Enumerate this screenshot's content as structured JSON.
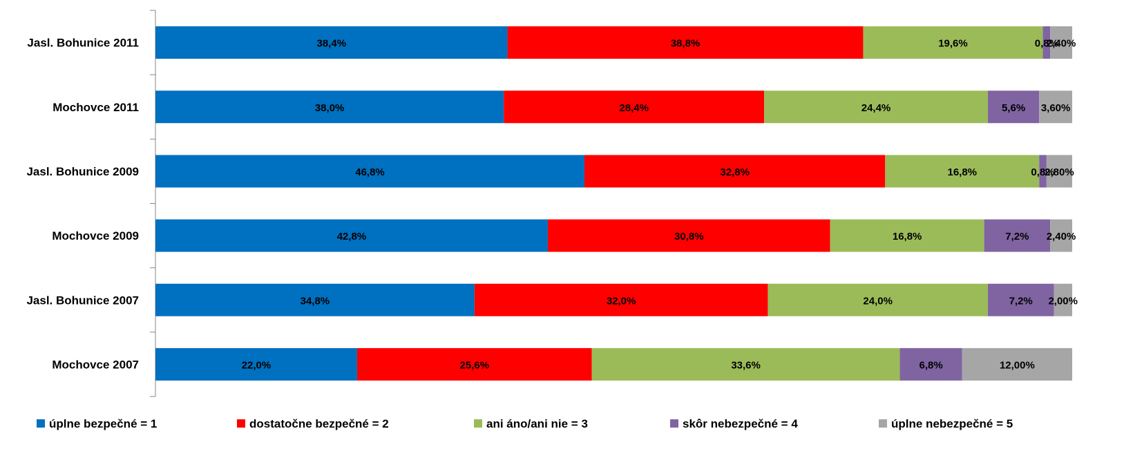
{
  "chart_data": {
    "type": "bar",
    "orientation": "horizontal",
    "stacked": true,
    "percent_stacked": true,
    "categories": [
      "Jasl. Bohunice 2011",
      "Mochovce 2011",
      "Jasl. Bohunice 2009",
      "Mochovce 2009",
      "Jasl. Bohunice 2007",
      "Mochovce 2007"
    ],
    "series": [
      {
        "name": "úplne bezpečné = 1",
        "color": "#0070C0",
        "values": [
          38.4,
          38.0,
          46.8,
          42.8,
          34.8,
          22.0
        ],
        "labels": [
          "38,4%",
          "38,0%",
          "46,8%",
          "42,8%",
          "34,8%",
          "22,0%"
        ]
      },
      {
        "name": "dostatočne bezpečné = 2",
        "color": "#FF0000",
        "values": [
          38.8,
          28.4,
          32.8,
          30.8,
          32.0,
          25.6
        ],
        "labels": [
          "38,8%",
          "28,4%",
          "32,8%",
          "30,8%",
          "32,0%",
          "25,6%"
        ]
      },
      {
        "name": "ani áno/ani nie = 3",
        "color": "#9BBB59",
        "values": [
          19.6,
          24.4,
          16.8,
          16.8,
          24.0,
          33.6
        ],
        "labels": [
          "19,6%",
          "24,4%",
          "16,8%",
          "16,8%",
          "24,0%",
          "33,6%"
        ]
      },
      {
        "name": "skôr nebezpečné = 4",
        "color": "#8064A2",
        "values": [
          0.8,
          5.6,
          0.8,
          7.2,
          7.2,
          6.8
        ],
        "labels": [
          "0,8%",
          "5,6%",
          "0,8%",
          "7,2%",
          "7,2%",
          "6,8%"
        ]
      },
      {
        "name": "úplne nebezpečné = 5",
        "color": "#A6A6A6",
        "values": [
          2.4,
          3.6,
          2.8,
          2.4,
          2.0,
          12.0
        ],
        "labels": [
          "2,40%",
          "3,60%",
          "2,80%",
          "2,40%",
          "2,00%",
          "12,00%"
        ]
      }
    ],
    "xlim": [
      0,
      100
    ],
    "grid": false,
    "legend_position": "bottom",
    "title": "",
    "xlabel": "",
    "ylabel": ""
  }
}
